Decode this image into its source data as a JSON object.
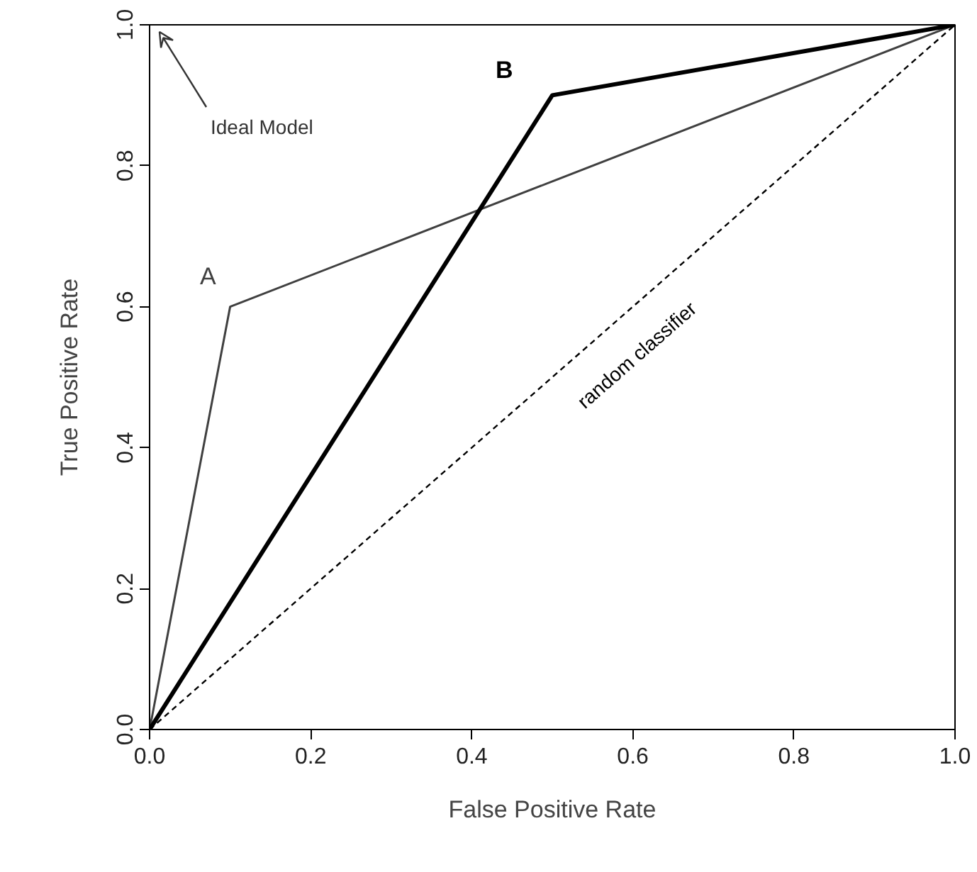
{
  "chart_data": {
    "type": "line",
    "xlabel": "False Positive Rate",
    "ylabel": "True Positive Rate",
    "series": [
      {
        "name": "A",
        "color": "#404040",
        "x": [
          0,
          0.1,
          1
        ],
        "values": [
          0,
          0.6,
          1
        ],
        "line_style": "solid"
      },
      {
        "name": "B",
        "color": "#000000",
        "x": [
          0,
          0.5,
          1
        ],
        "values": [
          0,
          0.9,
          1
        ],
        "line_style": "solid"
      },
      {
        "name": "random classifier",
        "color": "#000000",
        "x": [
          0,
          1
        ],
        "values": [
          0,
          1
        ],
        "line_style": "dashed"
      }
    ],
    "annotations": [
      "Ideal Model"
    ],
    "xlim": [
      0,
      1
    ],
    "ylim": [
      0,
      1
    ],
    "xticks": [
      {
        "value": 0,
        "label": "0.0"
      },
      0.2,
      0.4,
      0.6,
      0.8,
      {
        "value": 1,
        "label": "1.0"
      }
    ],
    "yticks": [
      {
        "value": 0,
        "label": "0.0"
      },
      0.2,
      0.4,
      0.6,
      0.8,
      {
        "value": 1,
        "label": "1.0"
      }
    ],
    "grid": false,
    "marker": "none"
  }
}
